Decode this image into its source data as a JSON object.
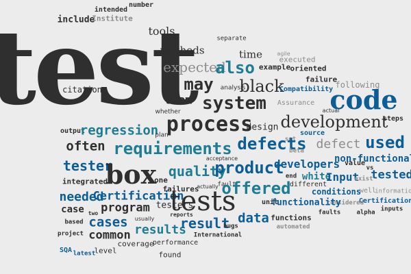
{
  "palette": {
    "background": "#ececec",
    "dark": "#2f2f2f",
    "teal": "#1f7d93",
    "navy": "#0c5c96",
    "gray": "#8c8c8c"
  },
  "words": {
    "test": "test",
    "code": "code",
    "box": "box",
    "tests": "tests",
    "process": "process",
    "requirements": "requirements",
    "product": "product",
    "offered": "offered",
    "development": "development",
    "defects": "defects",
    "system": "system",
    "may": "may",
    "black": "black",
    "also": "also",
    "used": "used",
    "quality": "quality",
    "tester": "tester",
    "regression": "regression",
    "often": "often",
    "cases": "cases",
    "results": "results",
    "result": "result",
    "data": "data",
    "needed": "needed",
    "common": "common",
    "developers": "developers",
    "tested": "tested",
    "non_functional": "non-functional",
    "certification": "Certification",
    "program": "program",
    "team": "team",
    "tools": "tools",
    "methods": "methods",
    "time": "time",
    "expected": "expected",
    "example": "example",
    "oriented": "oriented",
    "failure": "failure",
    "compatibility": "Compatibility",
    "design": "design",
    "defect": "defect",
    "input": "Input",
    "white": "white",
    "functionality": "functionality",
    "case": "case",
    "integrated": "integrated",
    "include": "include",
    "institute": "Institute",
    "number": "number",
    "intended": "intended",
    "separate": "separate",
    "agile": "agile",
    "executed": "executed",
    "analysis": "analysis",
    "following": "following",
    "assurance": "Assurance",
    "whether": "whether",
    "actual": "actual",
    "citation": "citation",
    "output": "output",
    "plan": "plan",
    "steps": "steps",
    "source": "source",
    "set": "set",
    "beta": "beta",
    "acceptance": "acceptance",
    "one": "one",
    "end": "end",
    "vs": "vs",
    "value": "value",
    "failures": "failures",
    "actually": "actually",
    "fault": "fault",
    "different": "different",
    "exist": "exist",
    "information": "information",
    "conditions": "conditions",
    "well": "well",
    "certifications": "Certifications",
    "unit": "unit",
    "considered": "considered",
    "inputs": "inputs",
    "testers": "testers",
    "reports": "reports",
    "functions": "functions",
    "faults": "faults",
    "alpha": "alpha",
    "based": "based",
    "two": "two",
    "usually": "usually",
    "bugs": "bugs",
    "automated": "automated",
    "project": "project",
    "international": "International",
    "coverage": "coverage",
    "performance": "performance",
    "sqa": "SQA",
    "latest": "latest",
    "level": "level",
    "found": "found"
  }
}
